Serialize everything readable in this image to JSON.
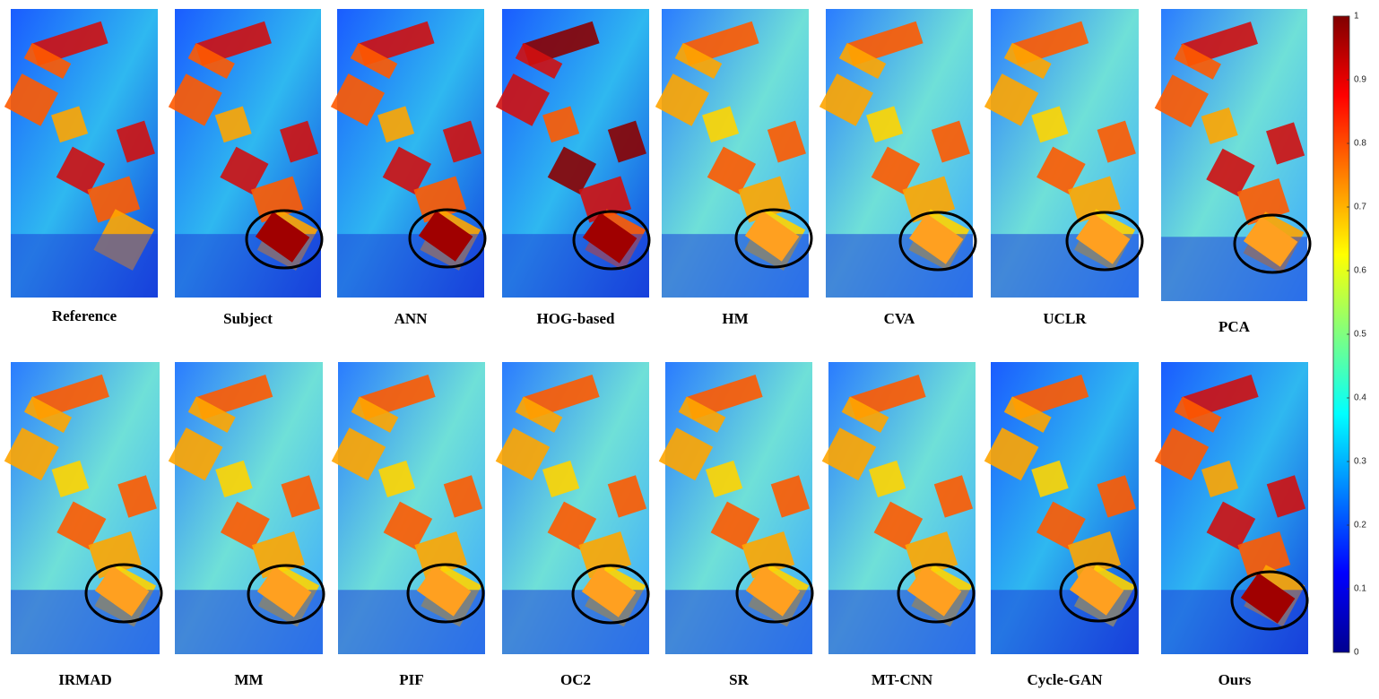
{
  "panels": [
    {
      "label": "Reference"
    },
    {
      "label": "Subject"
    },
    {
      "label": "ANN"
    },
    {
      "label": "HOG-based"
    },
    {
      "label": "HM"
    },
    {
      "label": "CVA"
    },
    {
      "label": "UCLR"
    },
    {
      "label": "PCA"
    },
    {
      "label": "IRMAD"
    },
    {
      "label": "MM"
    },
    {
      "label": "PIF"
    },
    {
      "label": "OC2"
    },
    {
      "label": "SR"
    },
    {
      "label": "MT-CNN"
    },
    {
      "label": "Cycle-GAN"
    },
    {
      "label": "Ours"
    }
  ],
  "colorbar": {
    "lim": [
      0,
      1
    ],
    "ticks": [
      0,
      0.1,
      0.2,
      0.3,
      0.4,
      0.5,
      0.6,
      0.7,
      0.8,
      0.9,
      1
    ]
  }
}
